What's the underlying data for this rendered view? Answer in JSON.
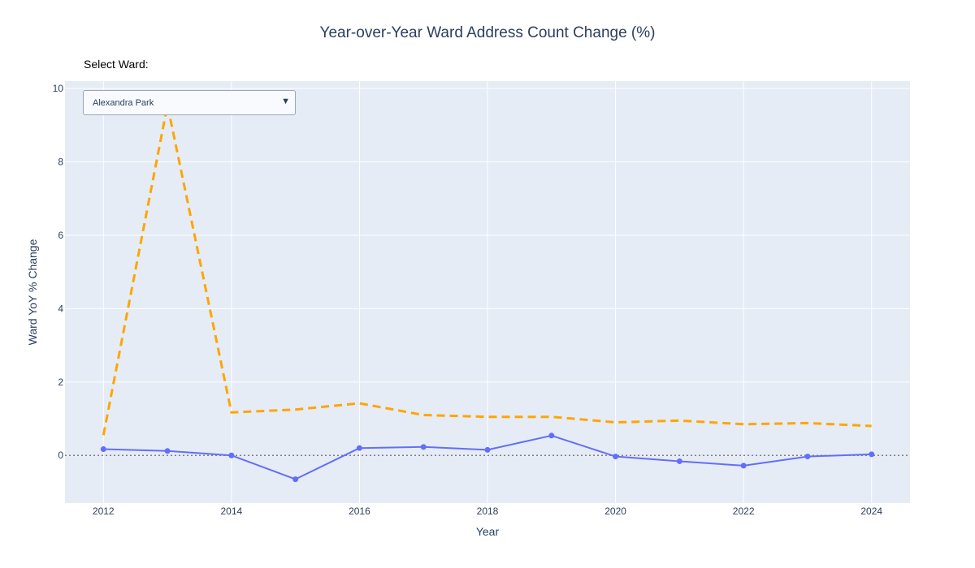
{
  "title": "Year-over-Year Ward Address Count Change (%)",
  "dropdown": {
    "label": "Select Ward:",
    "selected": "Alexandra Park"
  },
  "chart_data": {
    "type": "line",
    "title": "Year-over-Year Ward Address Count Change (%)",
    "xlabel": "Year",
    "ylabel": "Ward YoY % Change",
    "x": [
      2012,
      2013,
      2014,
      2015,
      2016,
      2017,
      2018,
      2019,
      2020,
      2021,
      2022,
      2023,
      2024
    ],
    "xlim": [
      2011.4,
      2024.6
    ],
    "ylim": [
      -1.3,
      10.2
    ],
    "xticks": [
      2012,
      2014,
      2016,
      2018,
      2020,
      2022,
      2024
    ],
    "yticks": [
      0,
      2,
      4,
      6,
      8,
      10
    ],
    "reference_line": {
      "y": 0,
      "style": "dotted",
      "color": "#808080"
    },
    "series": [
      {
        "style": "solid-with-markers",
        "color": "#636efa",
        "values": [
          0.17,
          0.12,
          0.0,
          -0.65,
          0.2,
          0.23,
          0.15,
          0.54,
          -0.03,
          -0.16,
          -0.28,
          -0.03,
          0.03
        ]
      },
      {
        "style": "dashed",
        "color": "#ffa500",
        "values": [
          0.55,
          9.55,
          1.17,
          1.25,
          1.42,
          1.1,
          1.05,
          1.05,
          0.9,
          0.95,
          0.85,
          0.88,
          0.8
        ]
      }
    ],
    "grid": true,
    "background": "#e5ecf6"
  }
}
